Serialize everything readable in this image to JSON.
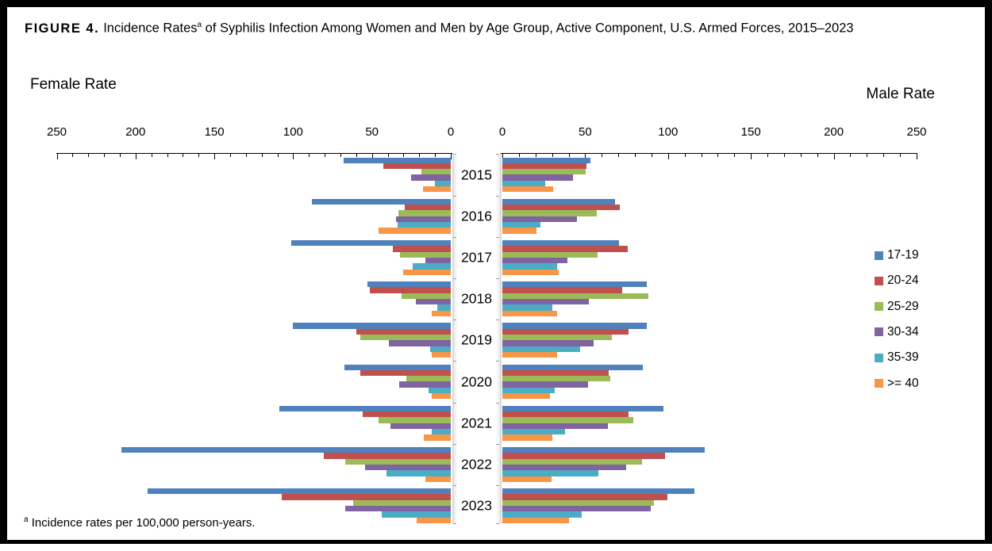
{
  "figure": {
    "label": "FIGURE 4.",
    "title_main": "Incidence Rates",
    "title_superscript": "a",
    "title_rest": " of Syphilis Infection Among Women and Men by Age Group, Active Component, U.S. Armed Forces, 2015–2023"
  },
  "footnote": {
    "superscript": "a",
    "text": " Incidence rates per 100,000 person-years."
  },
  "chart_data": {
    "type": "bar",
    "subtype": "bidirectional-population-pyramid",
    "title": "Incidence Rates of Syphilis Infection Among Women and Men by Age Group, Active Component, U.S. Armed Forces, 2015-2023",
    "left_axis_label": "Female Rate",
    "right_axis_label": "Male Rate",
    "units": "rate per 100,000 person-years",
    "categories": [
      "2015",
      "2016",
      "2017",
      "2018",
      "2019",
      "2020",
      "2021",
      "2022",
      "2023"
    ],
    "axis": {
      "min": 0,
      "max": 250,
      "major_tick": 50,
      "minor_tick": 10,
      "female_tick_labels": [
        "250",
        "200",
        "150",
        "100",
        "50",
        "0"
      ],
      "male_tick_labels": [
        "0",
        "50",
        "100",
        "150",
        "200",
        "250"
      ]
    },
    "legend_position": "right",
    "grid": false,
    "series": [
      {
        "id": "17-19",
        "name": "17-19",
        "color": "#4F81BD",
        "female": [
          68,
          88,
          101,
          53,
          100,
          67.5,
          109,
          209,
          192.5
        ],
        "male": [
          53,
          68,
          70.5,
          87,
          87,
          85,
          97,
          122,
          116
        ]
      },
      {
        "id": "20-24",
        "name": "20-24",
        "color": "#C0504D",
        "female": [
          43,
          29,
          37,
          51.5,
          60,
          57.5,
          56,
          80.5,
          107
        ],
        "male": [
          51,
          71,
          75.5,
          72.5,
          76,
          64,
          76,
          98,
          99.5
        ]
      },
      {
        "id": "25-29",
        "name": "25-29",
        "color": "#9BBB59",
        "female": [
          18.5,
          33,
          32,
          31,
          57.5,
          28,
          46,
          67,
          62
        ],
        "male": [
          50.5,
          57,
          57.5,
          88,
          66,
          65,
          79,
          84.5,
          91.5
        ]
      },
      {
        "id": "30-34",
        "name": "30-34",
        "color": "#8064A2",
        "female": [
          25,
          34.5,
          16,
          22,
          39.5,
          32.5,
          38.5,
          54.5,
          67
        ],
        "male": [
          42.5,
          45,
          39.5,
          52,
          55,
          51.5,
          63.5,
          74.5,
          89.5
        ]
      },
      {
        "id": "35-39",
        "name": "35-39",
        "color": "#4BACC6",
        "female": [
          10,
          33.5,
          24,
          8.5,
          13,
          14,
          12,
          41,
          44
        ],
        "male": [
          26,
          23,
          33,
          30,
          47,
          31.5,
          38,
          58,
          48
        ]
      },
      {
        "id": "ge-40",
        "name": ">= 40",
        "color": "#F79646",
        "female": [
          17.5,
          46,
          30,
          12,
          12,
          12,
          17,
          16,
          21.5
        ],
        "male": [
          30.5,
          20.5,
          34,
          33,
          33,
          28.5,
          30,
          29.5,
          40
        ]
      }
    ]
  }
}
